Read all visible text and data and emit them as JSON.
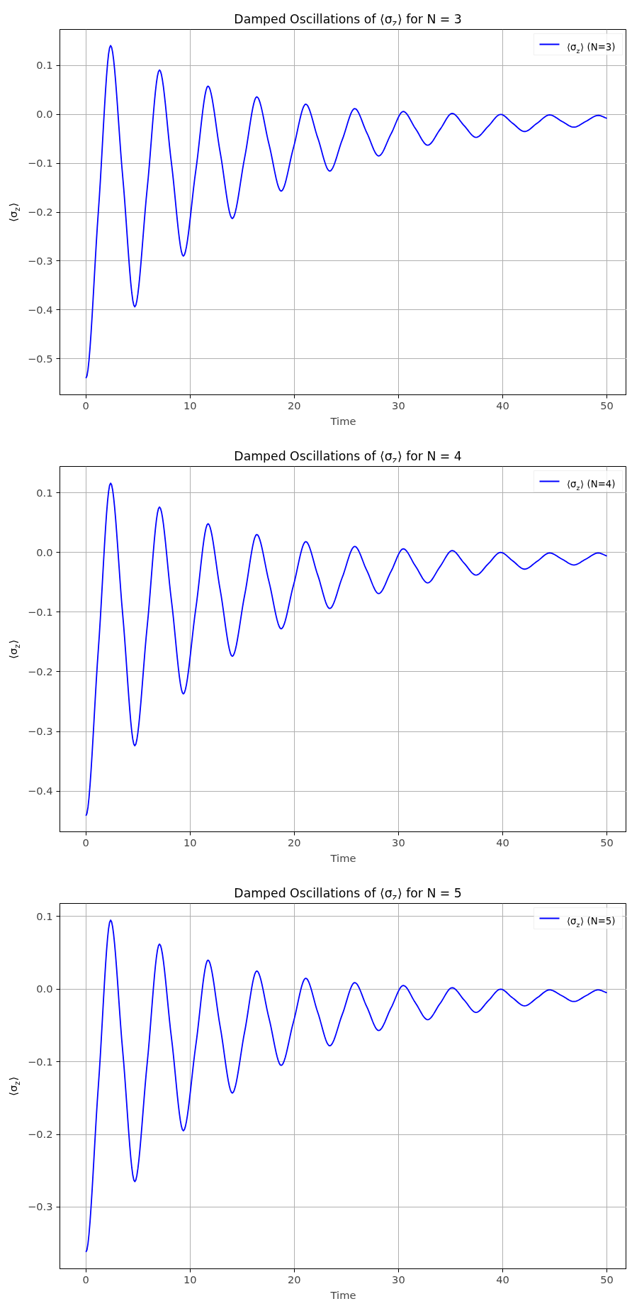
{
  "chart_data": [
    {
      "type": "line",
      "title": "Damped Oscillations of ⟨σ$_{z}$⟩ for N = 3",
      "xlabel": "Time",
      "ylabel": "⟨σ$_{z}$⟩",
      "x": [
        0,
        1.19,
        2.37,
        3.53,
        4.69,
        5.88,
        7.06,
        8.21,
        9.35,
        10.54,
        11.72,
        12.89,
        14.05,
        15.23,
        16.4,
        17.57,
        18.74,
        19.92,
        21.1,
        22.25,
        23.4,
        24.6,
        25.8,
        26.95,
        28.1,
        29.28,
        30.46,
        31.63,
        32.8,
        33.98,
        35.15,
        36.3,
        37.44,
        38.62,
        39.8,
        40.95,
        42.1,
        43.3,
        44.5,
        45.67,
        46.83,
        48.0,
        49.16,
        50
      ],
      "series": [
        {
          "name": "⟨σ$_{z}$⟩ (N=3)",
          "color": "#0000ff",
          "values": [
            -0.54,
            -0.2,
            0.141,
            -0.127,
            -0.394,
            -0.152,
            0.091,
            -0.1,
            -0.29,
            -0.116,
            0.058,
            -0.078,
            -0.213,
            -0.089,
            0.036,
            -0.061,
            -0.157,
            -0.068,
            0.021,
            -0.048,
            -0.116,
            -0.052,
            0.012,
            -0.037,
            -0.085,
            -0.04,
            0.006,
            -0.029,
            -0.063,
            -0.031,
            0.002,
            -0.023,
            -0.047,
            -0.024,
            0.0,
            -0.018,
            -0.035,
            -0.018,
            -0.001,
            -0.014,
            -0.026,
            -0.014,
            -0.002,
            -0.008
          ]
        }
      ],
      "xlim": [
        -2.5,
        51.9
      ],
      "xticks": [
        0,
        10,
        20,
        30,
        40,
        50
      ],
      "ylim": [
        -0.574,
        0.174
      ],
      "yticks": [
        {
          "value": -0.5,
          "label": "−0.5"
        },
        {
          "value": -0.4,
          "label": "−0.4"
        },
        {
          "value": -0.3,
          "label": "−0.3"
        },
        {
          "value": -0.2,
          "label": "−0.2"
        },
        {
          "value": -0.1,
          "label": "−0.1"
        },
        {
          "value": 0,
          "label": "0.0"
        },
        {
          "value": 0.1,
          "label": "0.1"
        }
      ],
      "grid": true,
      "legend": "top right",
      "marker": "none",
      "line_style": "solid"
    },
    {
      "type": "line",
      "title": "Damped Oscillations of ⟨σ$_{z}$⟩ for N = 4",
      "xlabel": "Time",
      "ylabel": "⟨σ$_{z}$⟩",
      "x": [
        0,
        1.19,
        2.37,
        3.53,
        4.69,
        5.88,
        7.06,
        8.21,
        9.35,
        10.54,
        11.72,
        12.89,
        14.05,
        15.23,
        16.4,
        17.57,
        18.74,
        19.92,
        21.1,
        22.25,
        23.4,
        24.6,
        25.8,
        26.95,
        28.1,
        29.28,
        30.46,
        31.63,
        32.8,
        33.98,
        35.15,
        36.3,
        37.44,
        38.62,
        39.8,
        40.95,
        42.1,
        43.3,
        44.5,
        45.67,
        46.83,
        48.0,
        49.16,
        50
      ],
      "series": [
        {
          "name": "⟨σ$_{z}$⟩ (N=4)",
          "color": "#0000ff",
          "values": [
            -0.441,
            -0.163,
            0.116,
            -0.104,
            -0.324,
            -0.124,
            0.076,
            -0.081,
            -0.237,
            -0.095,
            0.048,
            -0.063,
            -0.174,
            -0.072,
            0.03,
            -0.049,
            -0.128,
            -0.055,
            0.018,
            -0.038,
            -0.094,
            -0.042,
            0.01,
            -0.03,
            -0.069,
            -0.032,
            0.006,
            -0.023,
            -0.051,
            -0.024,
            0.003,
            -0.018,
            -0.038,
            -0.019,
            0.0,
            -0.014,
            -0.028,
            -0.015,
            -0.001,
            -0.011,
            -0.021,
            -0.011,
            -0.001,
            -0.006
          ]
        }
      ],
      "xlim": [
        -2.5,
        51.9
      ],
      "xticks": [
        0,
        10,
        20,
        30,
        40,
        50
      ],
      "ylim": [
        -0.468,
        0.144
      ],
      "yticks": [
        {
          "value": -0.4,
          "label": "−0.4"
        },
        {
          "value": -0.3,
          "label": "−0.3"
        },
        {
          "value": -0.2,
          "label": "−0.2"
        },
        {
          "value": -0.1,
          "label": "−0.1"
        },
        {
          "value": 0,
          "label": "0.0"
        },
        {
          "value": 0.1,
          "label": "0.1"
        }
      ],
      "grid": true,
      "legend": "top right",
      "marker": "none",
      "line_style": "solid"
    },
    {
      "type": "line",
      "title": "Damped Oscillations of ⟨σ$_{z}$⟩ for N = 5",
      "xlabel": "Time",
      "ylabel": "⟨σ$_{z}$⟩",
      "x": [
        0,
        1.19,
        2.37,
        3.53,
        4.69,
        5.88,
        7.06,
        8.21,
        9.35,
        10.54,
        11.72,
        12.89,
        14.05,
        15.23,
        16.4,
        17.57,
        18.74,
        19.92,
        21.1,
        22.25,
        23.4,
        24.6,
        25.8,
        26.95,
        28.1,
        29.28,
        30.46,
        31.63,
        32.8,
        33.98,
        35.15,
        36.3,
        37.44,
        38.62,
        39.8,
        40.95,
        42.1,
        43.3,
        44.5,
        45.67,
        46.83,
        48.0,
        49.16,
        50
      ],
      "series": [
        {
          "name": "⟨σ$_{z}$⟩ (N=5)",
          "color": "#0000ff",
          "values": [
            -0.362,
            -0.134,
            0.095,
            -0.085,
            -0.265,
            -0.102,
            0.062,
            -0.067,
            -0.195,
            -0.078,
            0.04,
            -0.052,
            -0.143,
            -0.059,
            0.025,
            -0.04,
            -0.105,
            -0.045,
            0.015,
            -0.032,
            -0.078,
            -0.035,
            0.009,
            -0.024,
            -0.057,
            -0.026,
            0.005,
            -0.019,
            -0.042,
            -0.02,
            0.002,
            -0.015,
            -0.032,
            -0.016,
            0.0,
            -0.012,
            -0.023,
            -0.012,
            -0.001,
            -0.009,
            -0.017,
            -0.009,
            -0.001,
            -0.005
          ]
        }
      ],
      "xlim": [
        -2.5,
        51.9
      ],
      "xticks": [
        0,
        10,
        20,
        30,
        40,
        50
      ],
      "ylim": [
        -0.385,
        0.118
      ],
      "yticks": [
        {
          "value": -0.3,
          "label": "−0.3"
        },
        {
          "value": -0.2,
          "label": "−0.2"
        },
        {
          "value": -0.1,
          "label": "−0.1"
        },
        {
          "value": 0,
          "label": "0.0"
        },
        {
          "value": 0.1,
          "label": "0.1"
        }
      ],
      "grid": true,
      "legend": "top right",
      "marker": "none",
      "line_style": "solid"
    }
  ]
}
